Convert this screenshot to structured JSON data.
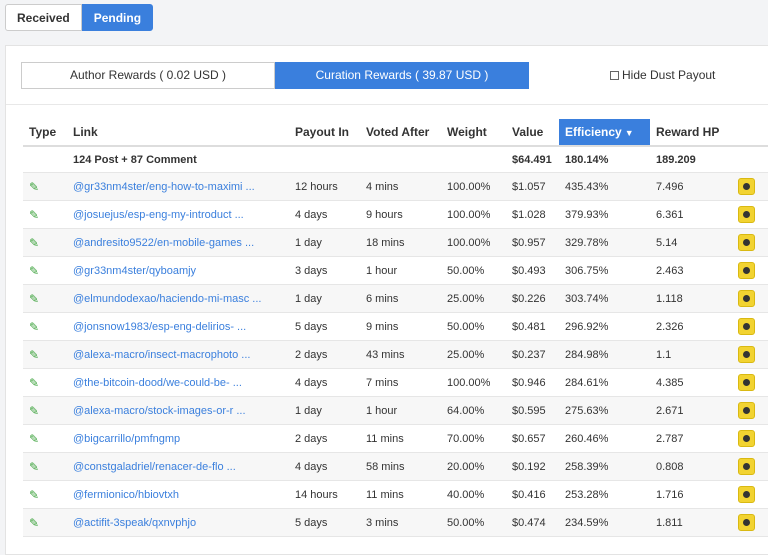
{
  "top_tabs": [
    {
      "label": "Received",
      "active": false
    },
    {
      "label": "Pending",
      "active": true
    }
  ],
  "reward_tabs": [
    {
      "label": "Author Rewards ( 0.02 USD )",
      "active": false
    },
    {
      "label": "Curation Rewards ( 39.87 USD )",
      "active": true
    }
  ],
  "hide_dust_label": "Hide Dust Payout",
  "headers": {
    "type": "Type",
    "link": "Link",
    "payout_in": "Payout In",
    "voted_after": "Voted After",
    "weight": "Weight",
    "value": "Value",
    "efficiency": "Efficiency",
    "reward_hp": "Reward HP"
  },
  "summary": {
    "link": "124 Post + 87 Comment",
    "value": "$64.491",
    "efficiency": "180.14%",
    "reward_hp": "189.209"
  },
  "rows": [
    {
      "link": "@gr33nm4ster/eng-how-to-maximi ...",
      "payout_in": "12 hours",
      "voted_after": "4 mins",
      "weight": "100.00%",
      "value": "$1.057",
      "efficiency": "435.43%",
      "reward_hp": "7.496"
    },
    {
      "link": "@josuejus/esp-eng-my-introduct ...",
      "payout_in": "4 days",
      "voted_after": "9 hours",
      "weight": "100.00%",
      "value": "$1.028",
      "efficiency": "379.93%",
      "reward_hp": "6.361"
    },
    {
      "link": "@andresito9522/en-mobile-games ...",
      "payout_in": "1 day",
      "voted_after": "18 mins",
      "weight": "100.00%",
      "value": "$0.957",
      "efficiency": "329.78%",
      "reward_hp": "5.14"
    },
    {
      "link": "@gr33nm4ster/qyboamjy",
      "payout_in": "3 days",
      "voted_after": "1 hour",
      "weight": "50.00%",
      "value": "$0.493",
      "efficiency": "306.75%",
      "reward_hp": "2.463"
    },
    {
      "link": "@elmundodexao/haciendo-mi-masc ...",
      "payout_in": "1 day",
      "voted_after": "6 mins",
      "weight": "25.00%",
      "value": "$0.226",
      "efficiency": "303.74%",
      "reward_hp": "1.118"
    },
    {
      "link": "@jonsnow1983/esp-eng-delirios- ...",
      "payout_in": "5 days",
      "voted_after": "9 mins",
      "weight": "50.00%",
      "value": "$0.481",
      "efficiency": "296.92%",
      "reward_hp": "2.326"
    },
    {
      "link": "@alexa-macro/insect-macrophoto ...",
      "payout_in": "2 days",
      "voted_after": "43 mins",
      "weight": "25.00%",
      "value": "$0.237",
      "efficiency": "284.98%",
      "reward_hp": "1.1"
    },
    {
      "link": "@the-bitcoin-dood/we-could-be- ...",
      "payout_in": "4 days",
      "voted_after": "7 mins",
      "weight": "100.00%",
      "value": "$0.946",
      "efficiency": "284.61%",
      "reward_hp": "4.385"
    },
    {
      "link": "@alexa-macro/stock-images-or-r ...",
      "payout_in": "1 day",
      "voted_after": "1 hour",
      "weight": "64.00%",
      "value": "$0.595",
      "efficiency": "275.63%",
      "reward_hp": "2.671"
    },
    {
      "link": "@bigcarrillo/pmfngmp",
      "payout_in": "2 days",
      "voted_after": "11 mins",
      "weight": "70.00%",
      "value": "$0.657",
      "efficiency": "260.46%",
      "reward_hp": "2.787"
    },
    {
      "link": "@constgaladriel/renacer-de-flo ...",
      "payout_in": "4 days",
      "voted_after": "58 mins",
      "weight": "20.00%",
      "value": "$0.192",
      "efficiency": "258.39%",
      "reward_hp": "0.808"
    },
    {
      "link": "@fermionico/hbiovtxh",
      "payout_in": "14 hours",
      "voted_after": "11 mins",
      "weight": "40.00%",
      "value": "$0.416",
      "efficiency": "253.28%",
      "reward_hp": "1.716"
    },
    {
      "link": "@actifit-3speak/qxnvphjo",
      "payout_in": "5 days",
      "voted_after": "3 mins",
      "weight": "50.00%",
      "value": "$0.474",
      "efficiency": "234.59%",
      "reward_hp": "1.811"
    }
  ],
  "icons": {
    "type": "pencil-icon",
    "action": "coin-icon"
  },
  "colors": {
    "accent": "#3a7fdd",
    "type_icon": "#3aa13a",
    "coin": "#f2d331"
  }
}
